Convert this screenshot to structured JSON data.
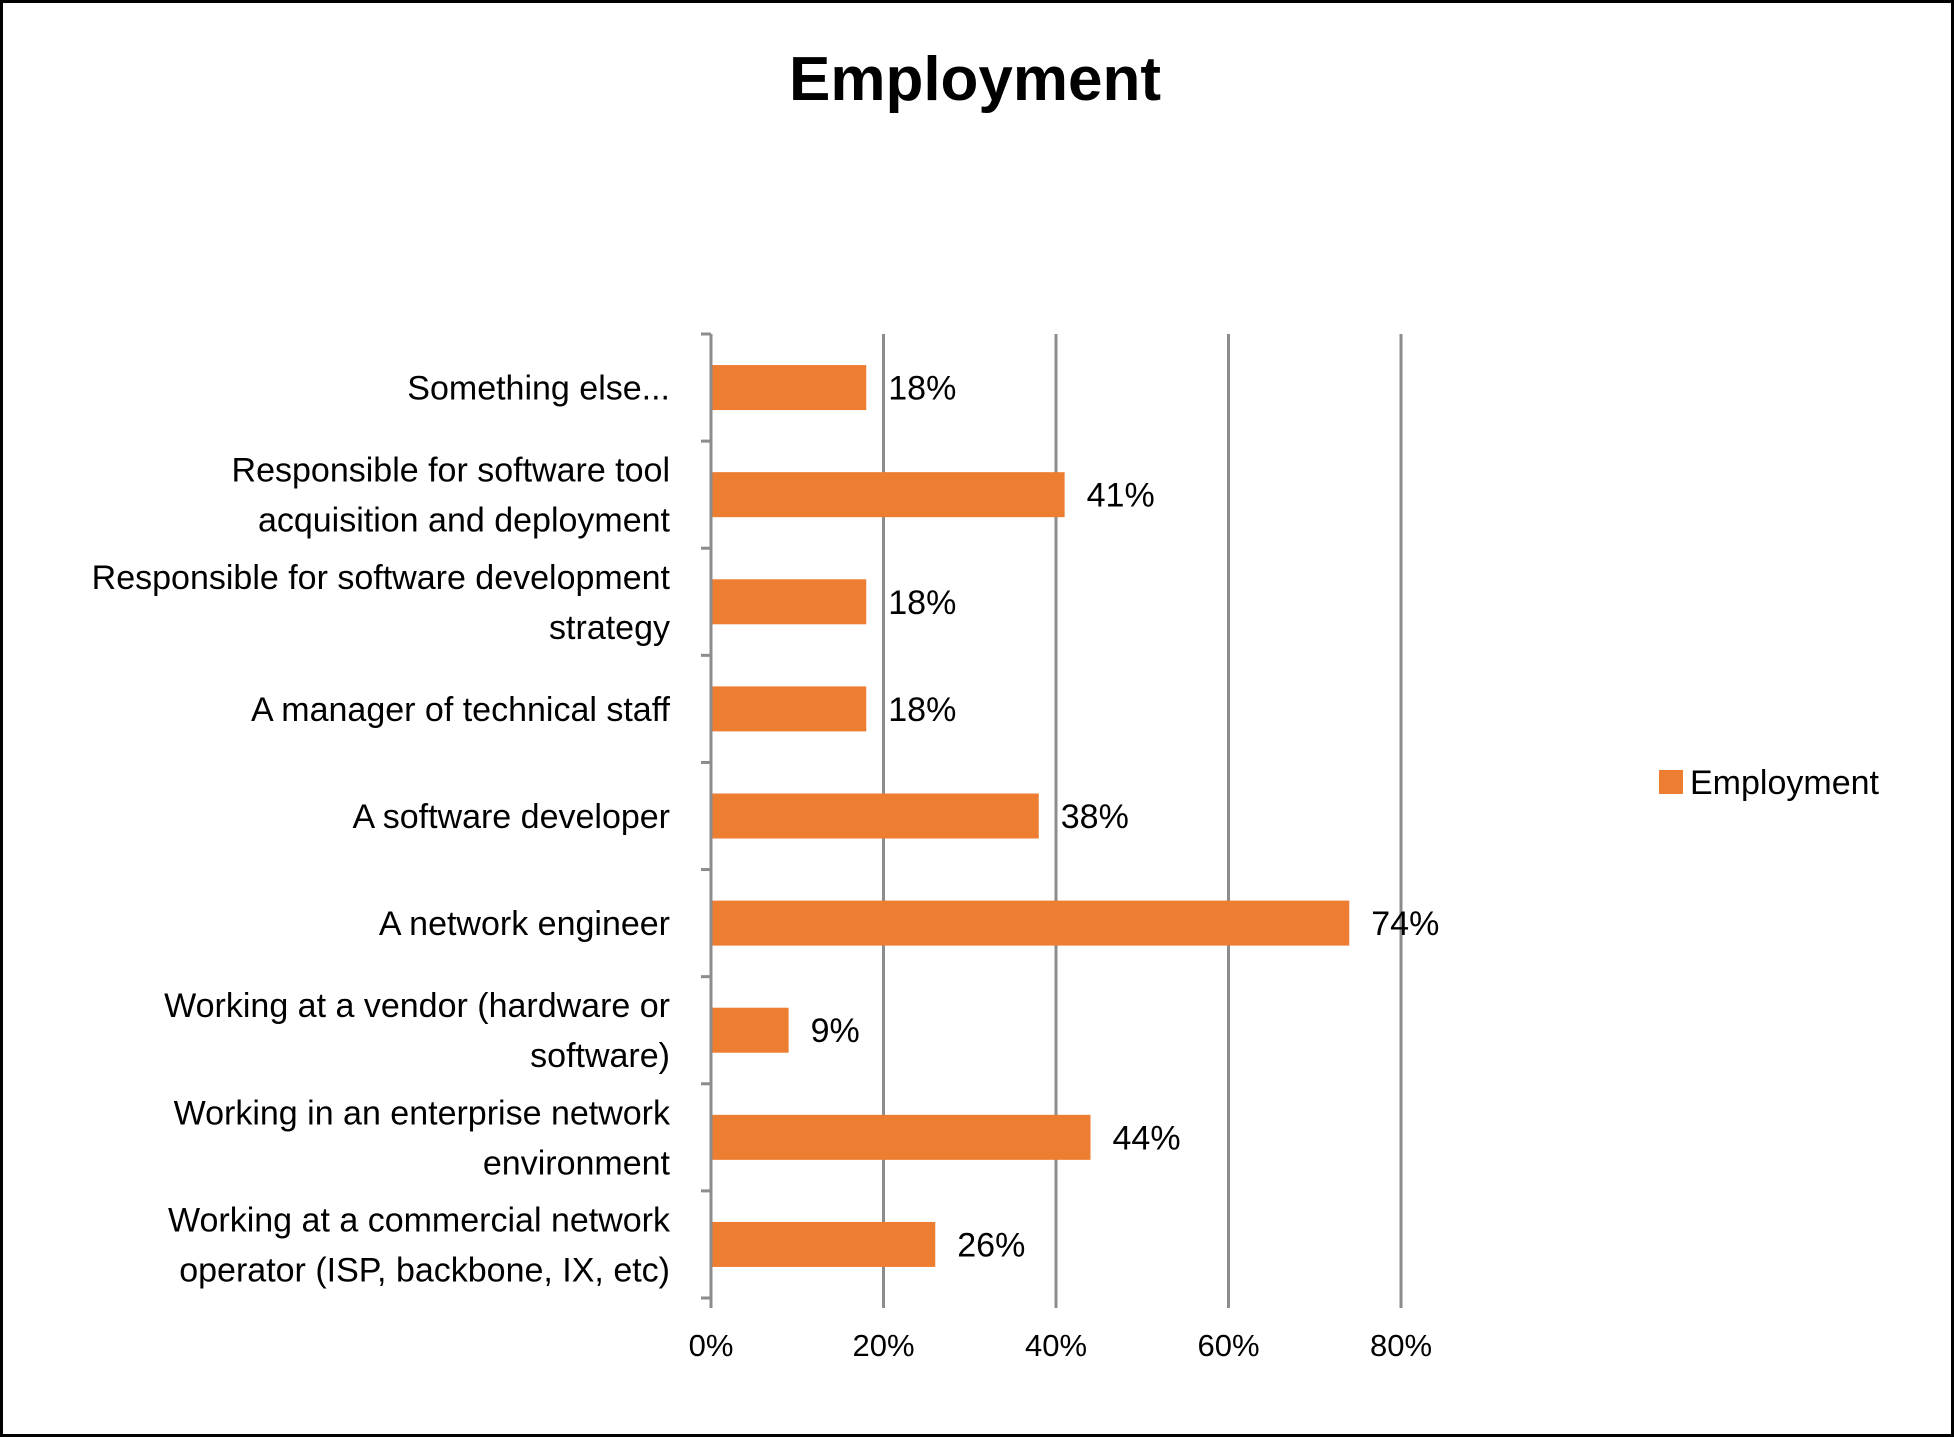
{
  "chart_data": {
    "type": "bar",
    "orientation": "horizontal",
    "title": "Employment",
    "xlabel": "",
    "ylabel": "",
    "categories": [
      [
        "Something else..."
      ],
      [
        "Responsible for software tool",
        "acquisition and deployment"
      ],
      [
        "Responsible for software development",
        "strategy"
      ],
      [
        "A manager of technical staff"
      ],
      [
        "A software developer"
      ],
      [
        "A network engineer"
      ],
      [
        "Working at a vendor (hardware or",
        "software)"
      ],
      [
        "Working in an enterprise network",
        "environment"
      ],
      [
        "Working at a commercial network",
        "operator (ISP, backbone, IX, etc)"
      ]
    ],
    "series": [
      {
        "name": "Employment",
        "color": "#ED7D31",
        "values": [
          18,
          41,
          18,
          18,
          38,
          74,
          9,
          44,
          26
        ],
        "data_labels": [
          "18%",
          "41%",
          "18%",
          "18%",
          "38%",
          "74%",
          "9%",
          "44%",
          "26%"
        ]
      }
    ],
    "xlim": [
      0,
      80
    ],
    "xticks": [
      0,
      20,
      40,
      60,
      80
    ],
    "xtick_labels": [
      "0%",
      "20%",
      "40%",
      "60%",
      "80%"
    ],
    "grid": "vertical",
    "legend": "right"
  }
}
